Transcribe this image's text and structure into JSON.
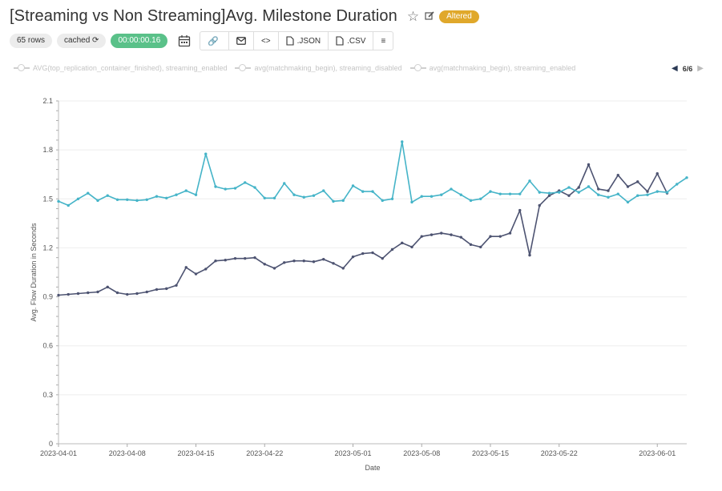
{
  "header": {
    "title": "[Streaming vs Non Streaming]Avg. Milestone Duration",
    "star_icon": "star-icon",
    "edit_icon": "edit-icon",
    "altered_label": "Altered"
  },
  "toolbar": {
    "rows_label": "65 rows",
    "cached_label": "cached",
    "timer_label": "00:00:00.16",
    "json_label": ".JSON",
    "csv_label": ".CSV",
    "icons": [
      "calendar-icon",
      "link-icon",
      "mail-icon",
      "code-icon",
      "file-icon",
      "menu-icon"
    ]
  },
  "legend": {
    "items": [
      "AVG(top_replication_container_finished), streaming_enabled",
      "avg(matchmaking_begin), streaming_disabled",
      "avg(matchmaking_begin), streaming_enabled"
    ],
    "page": "6/6"
  },
  "colors": {
    "series_dark": "#4d5371",
    "series_teal": "#45b4c8",
    "grid": "#eeeeee",
    "altered": "#e0a82b",
    "cache_timer": "#5ac189"
  },
  "chart_data": {
    "type": "line",
    "title": "",
    "xlabel": "Date",
    "ylabel": "Avg. Flow Duration in Seconds",
    "ylim": [
      0,
      2.1
    ],
    "x_start": "2023-04-01",
    "x_end": "2023-06-04",
    "x_ticks": [
      "2023-04-01",
      "2023-04-08",
      "2023-04-15",
      "2023-04-22",
      "2023-05-01",
      "2023-05-08",
      "2023-05-15",
      "2023-05-22",
      "2023-06-01"
    ],
    "y_ticks": [
      "0",
      "0.3",
      "0.6",
      "0.9",
      "1.2",
      "1.5",
      "1.8",
      "2.1"
    ],
    "grid": true,
    "legend_position": "top",
    "series": [
      {
        "color": "#4d5371",
        "values": [
          [
            "2023-04-01",
            0.91
          ],
          [
            "2023-04-02",
            0.915
          ],
          [
            "2023-04-03",
            0.92
          ],
          [
            "2023-04-04",
            0.925
          ],
          [
            "2023-04-05",
            0.93
          ],
          [
            "2023-04-06",
            0.96
          ],
          [
            "2023-04-07",
            0.925
          ],
          [
            "2023-04-08",
            0.915
          ],
          [
            "2023-04-09",
            0.92
          ],
          [
            "2023-04-10",
            0.93
          ],
          [
            "2023-04-11",
            0.945
          ],
          [
            "2023-04-12",
            0.95
          ],
          [
            "2023-04-13",
            0.97
          ],
          [
            "2023-04-14",
            1.08
          ],
          [
            "2023-04-15",
            1.04
          ],
          [
            "2023-04-16",
            1.07
          ],
          [
            "2023-04-17",
            1.12
          ],
          [
            "2023-04-18",
            1.125
          ],
          [
            "2023-04-19",
            1.135
          ],
          [
            "2023-04-20",
            1.135
          ],
          [
            "2023-04-21",
            1.14
          ],
          [
            "2023-04-22",
            1.1
          ],
          [
            "2023-04-23",
            1.075
          ],
          [
            "2023-04-24",
            1.11
          ],
          [
            "2023-04-25",
            1.12
          ],
          [
            "2023-04-26",
            1.12
          ],
          [
            "2023-04-27",
            1.115
          ],
          [
            "2023-04-28",
            1.13
          ],
          [
            "2023-04-29",
            1.105
          ],
          [
            "2023-04-30",
            1.075
          ],
          [
            "2023-05-01",
            1.145
          ],
          [
            "2023-05-02",
            1.165
          ],
          [
            "2023-05-03",
            1.17
          ],
          [
            "2023-05-04",
            1.135
          ],
          [
            "2023-05-05",
            1.19
          ],
          [
            "2023-05-06",
            1.23
          ],
          [
            "2023-05-07",
            1.205
          ],
          [
            "2023-05-08",
            1.27
          ],
          [
            "2023-05-09",
            1.28
          ],
          [
            "2023-05-10",
            1.29
          ],
          [
            "2023-05-11",
            1.28
          ],
          [
            "2023-05-12",
            1.265
          ],
          [
            "2023-05-13",
            1.22
          ],
          [
            "2023-05-14",
            1.205
          ],
          [
            "2023-05-15",
            1.27
          ],
          [
            "2023-05-16",
            1.27
          ],
          [
            "2023-05-17",
            1.29
          ],
          [
            "2023-05-18",
            1.43
          ],
          [
            "2023-05-19",
            1.155
          ],
          [
            "2023-05-20",
            1.46
          ],
          [
            "2023-05-21",
            1.52
          ],
          [
            "2023-05-22",
            1.55
          ],
          [
            "2023-05-23",
            1.52
          ],
          [
            "2023-05-24",
            1.57
          ],
          [
            "2023-05-25",
            1.71
          ],
          [
            "2023-05-26",
            1.56
          ],
          [
            "2023-05-27",
            1.55
          ],
          [
            "2023-05-28",
            1.645
          ],
          [
            "2023-05-29",
            1.575
          ],
          [
            "2023-05-30",
            1.605
          ],
          [
            "2023-05-31",
            1.545
          ],
          [
            "2023-06-01",
            1.655
          ],
          [
            "2023-06-02",
            1.535
          ]
        ]
      },
      {
        "color": "#45b4c8",
        "values": [
          [
            "2023-04-01",
            1.485
          ],
          [
            "2023-04-02",
            1.46
          ],
          [
            "2023-04-03",
            1.5
          ],
          [
            "2023-04-04",
            1.535
          ],
          [
            "2023-04-05",
            1.49
          ],
          [
            "2023-04-06",
            1.52
          ],
          [
            "2023-04-07",
            1.495
          ],
          [
            "2023-04-08",
            1.495
          ],
          [
            "2023-04-09",
            1.49
          ],
          [
            "2023-04-10",
            1.495
          ],
          [
            "2023-04-11",
            1.515
          ],
          [
            "2023-04-12",
            1.505
          ],
          [
            "2023-04-13",
            1.525
          ],
          [
            "2023-04-14",
            1.55
          ],
          [
            "2023-04-15",
            1.525
          ],
          [
            "2023-04-16",
            1.775
          ],
          [
            "2023-04-17",
            1.575
          ],
          [
            "2023-04-18",
            1.56
          ],
          [
            "2023-04-19",
            1.565
          ],
          [
            "2023-04-20",
            1.6
          ],
          [
            "2023-04-21",
            1.57
          ],
          [
            "2023-04-22",
            1.505
          ],
          [
            "2023-04-23",
            1.505
          ],
          [
            "2023-04-24",
            1.595
          ],
          [
            "2023-04-25",
            1.525
          ],
          [
            "2023-04-26",
            1.51
          ],
          [
            "2023-04-27",
            1.52
          ],
          [
            "2023-04-28",
            1.55
          ],
          [
            "2023-04-29",
            1.485
          ],
          [
            "2023-04-30",
            1.49
          ],
          [
            "2023-05-01",
            1.58
          ],
          [
            "2023-05-02",
            1.545
          ],
          [
            "2023-05-03",
            1.545
          ],
          [
            "2023-05-04",
            1.49
          ],
          [
            "2023-05-05",
            1.5
          ],
          [
            "2023-05-06",
            1.85
          ],
          [
            "2023-05-07",
            1.48
          ],
          [
            "2023-05-08",
            1.515
          ],
          [
            "2023-05-09",
            1.515
          ],
          [
            "2023-05-10",
            1.525
          ],
          [
            "2023-05-11",
            1.56
          ],
          [
            "2023-05-12",
            1.525
          ],
          [
            "2023-05-13",
            1.49
          ],
          [
            "2023-05-14",
            1.5
          ],
          [
            "2023-05-15",
            1.545
          ],
          [
            "2023-05-16",
            1.53
          ],
          [
            "2023-05-17",
            1.53
          ],
          [
            "2023-05-18",
            1.53
          ],
          [
            "2023-05-19",
            1.61
          ],
          [
            "2023-05-20",
            1.54
          ],
          [
            "2023-05-21",
            1.535
          ],
          [
            "2023-05-22",
            1.54
          ],
          [
            "2023-05-23",
            1.57
          ],
          [
            "2023-05-24",
            1.54
          ],
          [
            "2023-05-25",
            1.575
          ],
          [
            "2023-05-26",
            1.525
          ],
          [
            "2023-05-27",
            1.51
          ],
          [
            "2023-05-28",
            1.53
          ],
          [
            "2023-05-29",
            1.48
          ],
          [
            "2023-05-30",
            1.52
          ],
          [
            "2023-05-31",
            1.525
          ],
          [
            "2023-06-01",
            1.545
          ],
          [
            "2023-06-02",
            1.54
          ],
          [
            "2023-06-03",
            1.59
          ],
          [
            "2023-06-04",
            1.63
          ]
        ]
      }
    ]
  }
}
